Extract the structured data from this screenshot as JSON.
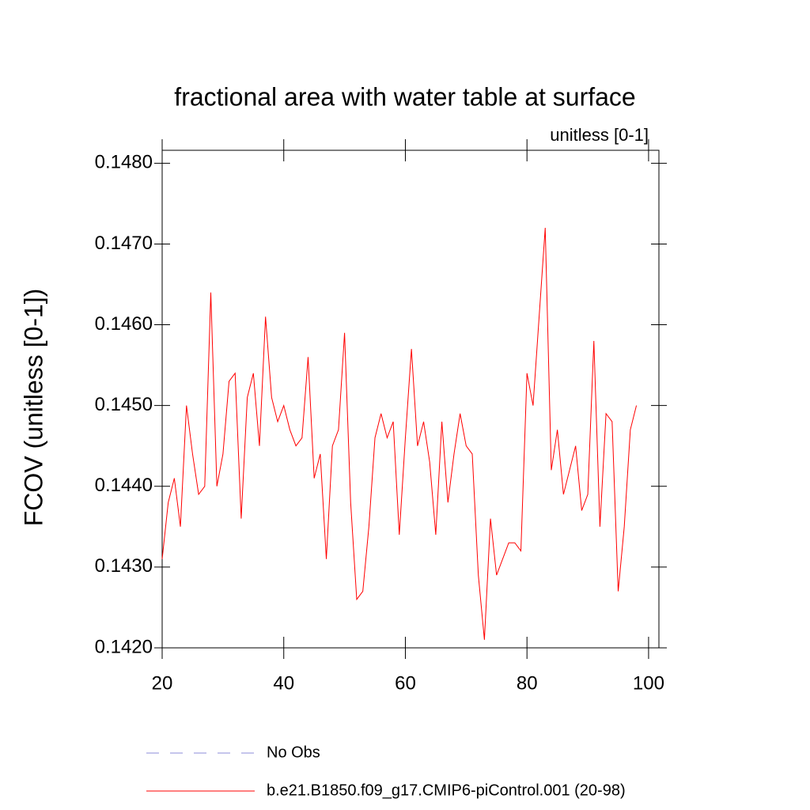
{
  "chart_data": {
    "type": "line",
    "title": "fractional area with water table at surface",
    "subtitle": "unitless [0-1]",
    "y_label": "FCOV  (unitless [0-1])",
    "x": [
      20,
      21,
      22,
      23,
      24,
      25,
      26,
      27,
      28,
      29,
      30,
      31,
      32,
      33,
      34,
      35,
      36,
      37,
      38,
      39,
      40,
      41,
      42,
      43,
      44,
      45,
      46,
      47,
      48,
      49,
      50,
      51,
      52,
      53,
      54,
      55,
      56,
      57,
      58,
      59,
      60,
      61,
      62,
      63,
      64,
      65,
      66,
      67,
      68,
      69,
      70,
      71,
      72,
      73,
      74,
      75,
      76,
      77,
      78,
      79,
      80,
      81,
      82,
      83,
      84,
      85,
      86,
      87,
      88,
      89,
      90,
      91,
      92,
      93,
      94,
      95,
      96,
      97,
      98
    ],
    "series": [
      {
        "name": "b.e21.B1850.f09_g17.CMIP6-piControl.001 (20-98)",
        "color": "#ff0000",
        "values": [
          0.1431,
          0.1438,
          0.1441,
          0.1435,
          0.145,
          0.1444,
          0.1439,
          0.144,
          0.1464,
          0.144,
          0.1444,
          0.1453,
          0.1454,
          0.1436,
          0.1451,
          0.1454,
          0.1445,
          0.1461,
          0.1451,
          0.1448,
          0.145,
          0.1447,
          0.1445,
          0.1446,
          0.1456,
          0.1441,
          0.1444,
          0.1431,
          0.1445,
          0.1447,
          0.1459,
          0.1438,
          0.1426,
          0.1427,
          0.1435,
          0.1446,
          0.1449,
          0.1446,
          0.1448,
          0.1434,
          0.1446,
          0.1457,
          0.1445,
          0.1448,
          0.1443,
          0.1434,
          0.1448,
          0.1438,
          0.1444,
          0.1449,
          0.1445,
          0.1444,
          0.1429,
          0.1421,
          0.1436,
          0.1429,
          0.1431,
          0.1433,
          0.1433,
          0.1432,
          0.1454,
          0.145,
          0.1461,
          0.1472,
          0.1442,
          0.1447,
          0.1439,
          0.1442,
          0.1445,
          0.1437,
          0.1439,
          0.1458,
          0.1435,
          0.1449,
          0.1448,
          0.1427,
          0.1435,
          0.1447,
          0.145
        ]
      }
    ],
    "legend_extra": [
      {
        "name": "No Obs",
        "color": "#8c8cd9",
        "dashed": true
      }
    ],
    "xlim": [
      20,
      101.7
    ],
    "xticks": [
      20,
      40,
      60,
      80,
      100
    ],
    "ylim": [
      0.142,
      0.14816
    ],
    "yticks": [
      {
        "value": 0.142,
        "label": "0.1420"
      },
      {
        "value": 0.143,
        "label": "0.1430"
      },
      {
        "value": 0.144,
        "label": "0.1440"
      },
      {
        "value": 0.145,
        "label": "0.1450"
      },
      {
        "value": 0.146,
        "label": "0.1460"
      },
      {
        "value": 0.147,
        "label": "0.1470"
      },
      {
        "value": 0.148,
        "label": "0.1480"
      }
    ],
    "grid": false
  }
}
